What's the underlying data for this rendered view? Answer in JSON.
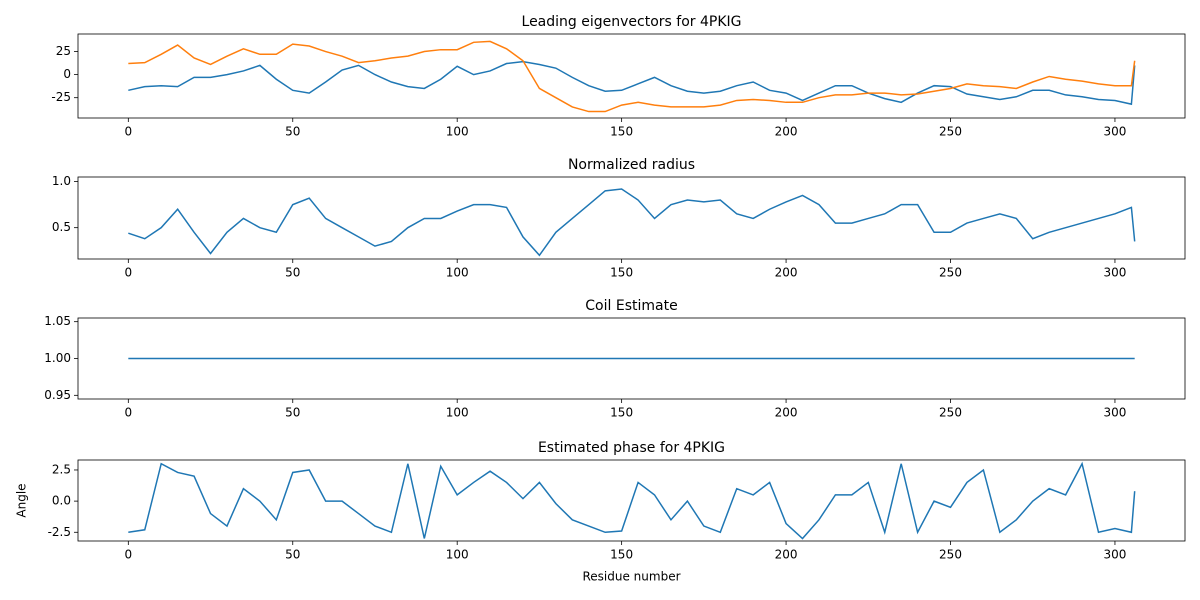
{
  "chart_data": [
    {
      "type": "line",
      "title": "Leading eigenvectors for 4PKIG",
      "x": [
        0,
        5,
        10,
        15,
        20,
        25,
        30,
        35,
        40,
        45,
        50,
        55,
        60,
        65,
        70,
        75,
        80,
        85,
        90,
        95,
        100,
        105,
        110,
        115,
        120,
        125,
        130,
        135,
        140,
        145,
        150,
        155,
        160,
        165,
        170,
        175,
        180,
        185,
        190,
        195,
        200,
        205,
        210,
        215,
        220,
        225,
        230,
        235,
        240,
        245,
        250,
        255,
        260,
        265,
        270,
        275,
        280,
        285,
        290,
        295,
        300,
        305,
        306
      ],
      "series": [
        {
          "color": "#1f77b4",
          "values": [
            -17,
            -13,
            -12,
            -13,
            -3,
            -3,
            0,
            4,
            10,
            -5,
            -17,
            -20,
            -8,
            5,
            10,
            0,
            -8,
            -13,
            -15,
            -5,
            9,
            0,
            4,
            12,
            14,
            11,
            7,
            -3,
            -12,
            -18,
            -17,
            -10,
            -3,
            -12,
            -18,
            -20,
            -18,
            -12,
            -8,
            -17,
            -20,
            -28,
            -20,
            -12,
            -12,
            -20,
            -26,
            -30,
            -20,
            -12,
            -13,
            -21,
            -24,
            -27,
            -24,
            -17,
            -17,
            -22,
            -24,
            -27,
            -28,
            -32,
            10
          ]
        },
        {
          "color": "#ff7f0e",
          "values": [
            12,
            13,
            22,
            32,
            18,
            11,
            20,
            28,
            22,
            22,
            33,
            31,
            25,
            20,
            13,
            15,
            18,
            20,
            25,
            27,
            27,
            35,
            36,
            28,
            15,
            -15,
            -25,
            -35,
            -40,
            -40,
            -33,
            -30,
            -33,
            -35,
            -35,
            -35,
            -33,
            -28,
            -27,
            -28,
            -30,
            -30,
            -25,
            -22,
            -22,
            -20,
            -20,
            -22,
            -21,
            -18,
            -15,
            -10,
            -12,
            -13,
            -15,
            -8,
            -2,
            -5,
            -7,
            -10,
            -12,
            -12,
            15
          ]
        }
      ],
      "xlim": [
        -15.3,
        321.3
      ],
      "xticks": [
        0,
        50,
        100,
        150,
        200,
        250,
        300
      ],
      "ylim": [
        -47,
        44
      ],
      "yticks": [
        -25,
        0,
        25
      ]
    },
    {
      "type": "line",
      "title": "Normalized radius",
      "x": [
        0,
        5,
        10,
        15,
        20,
        25,
        30,
        35,
        40,
        45,
        50,
        55,
        60,
        65,
        70,
        75,
        80,
        85,
        90,
        95,
        100,
        105,
        110,
        115,
        120,
        125,
        130,
        135,
        140,
        145,
        150,
        155,
        160,
        165,
        170,
        175,
        180,
        185,
        190,
        195,
        200,
        205,
        210,
        215,
        220,
        225,
        230,
        235,
        240,
        245,
        250,
        255,
        260,
        265,
        270,
        275,
        280,
        285,
        290,
        295,
        300,
        305,
        306
      ],
      "series": [
        {
          "color": "#1f77b4",
          "values": [
            0.44,
            0.38,
            0.5,
            0.7,
            0.45,
            0.22,
            0.45,
            0.6,
            0.5,
            0.45,
            0.75,
            0.82,
            0.6,
            0.5,
            0.4,
            0.3,
            0.35,
            0.5,
            0.6,
            0.6,
            0.68,
            0.75,
            0.75,
            0.72,
            0.4,
            0.2,
            0.45,
            0.6,
            0.75,
            0.9,
            0.92,
            0.8,
            0.6,
            0.75,
            0.8,
            0.78,
            0.8,
            0.65,
            0.6,
            0.7,
            0.78,
            0.85,
            0.75,
            0.55,
            0.55,
            0.6,
            0.65,
            0.75,
            0.75,
            0.45,
            0.45,
            0.55,
            0.6,
            0.65,
            0.6,
            0.38,
            0.45,
            0.5,
            0.55,
            0.6,
            0.65,
            0.72,
            0.35
          ]
        }
      ],
      "xlim": [
        -15.3,
        321.3
      ],
      "xticks": [
        0,
        50,
        100,
        150,
        200,
        250,
        300
      ],
      "ylim": [
        0.16,
        1.05
      ],
      "yticks": [
        0.5,
        {
          "value": 1,
          "label": "1.0"
        }
      ]
    },
    {
      "type": "line",
      "title": "Coil Estimate",
      "x": [
        0,
        306
      ],
      "series": [
        {
          "color": "#1f77b4",
          "values": [
            1,
            1
          ]
        }
      ],
      "xlim": [
        -15.3,
        321.3
      ],
      "xticks": [
        0,
        50,
        100,
        150,
        200,
        250,
        300
      ],
      "ylim": [
        0.945,
        1.055
      ],
      "yticks": [
        {
          "value": 0.95,
          "label": "0.95"
        },
        {
          "value": 1,
          "label": "1.00"
        },
        {
          "value": 1.05,
          "label": "1.05"
        }
      ]
    },
    {
      "type": "line",
      "title": "Estimated phase for 4PKIG",
      "xlabel": "Residue number",
      "ylabel": "Angle",
      "x": [
        0,
        5,
        10,
        15,
        20,
        25,
        30,
        35,
        40,
        45,
        50,
        55,
        60,
        65,
        70,
        75,
        80,
        85,
        90,
        95,
        100,
        105,
        110,
        115,
        120,
        125,
        130,
        135,
        140,
        145,
        150,
        155,
        160,
        165,
        170,
        175,
        180,
        185,
        190,
        195,
        200,
        205,
        210,
        215,
        220,
        225,
        230,
        235,
        240,
        245,
        250,
        255,
        260,
        265,
        270,
        275,
        280,
        285,
        290,
        295,
        300,
        305,
        306
      ],
      "series": [
        {
          "color": "#1f77b4",
          "values": [
            -2.5,
            -2.3,
            3,
            2.3,
            2,
            -1,
            -2,
            1,
            0,
            -1.5,
            2.3,
            2.5,
            0,
            0,
            -1,
            -2,
            -2.5,
            3,
            -3,
            2.8,
            0.5,
            1.5,
            2.4,
            1.5,
            0.2,
            1.5,
            -0.2,
            -1.5,
            -2,
            -2.5,
            -2.4,
            1.5,
            0.5,
            -1.5,
            0,
            -2,
            -2.5,
            1,
            0.5,
            1.5,
            -1.8,
            -3,
            -1.5,
            0.5,
            0.5,
            1.5,
            -2.5,
            3,
            -2.5,
            0,
            -0.5,
            1.5,
            2.5,
            -2.5,
            -1.5,
            0,
            1,
            0.5,
            3,
            -2.5,
            -2.2,
            -2.5,
            0.8
          ]
        }
      ],
      "xlim": [
        -15.3,
        321.3
      ],
      "xticks": [
        0,
        50,
        100,
        150,
        200,
        250,
        300
      ],
      "ylim": [
        -3.2,
        3.3
      ],
      "yticks": [
        -2.5,
        {
          "value": 0,
          "label": "0.0"
        },
        2.5
      ]
    }
  ]
}
